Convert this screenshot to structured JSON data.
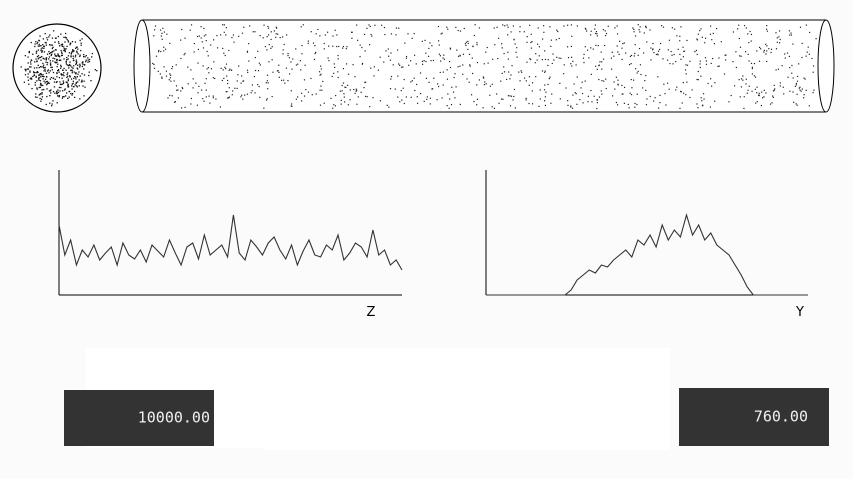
{
  "histograms": [
    {
      "axis_label": "Z",
      "ylim": [
        0,
        125
      ],
      "values": [
        70,
        40,
        55,
        30,
        45,
        38,
        50,
        35,
        42,
        48,
        30,
        52,
        40,
        36,
        45,
        33,
        50,
        44,
        38,
        55,
        42,
        30,
        48,
        52,
        36,
        60,
        40,
        45,
        50,
        38,
        80,
        42,
        35,
        55,
        48,
        40,
        52,
        58,
        45,
        36,
        50,
        30,
        44,
        55,
        40,
        38,
        50,
        45,
        60,
        35,
        42,
        52,
        48,
        38,
        65,
        40,
        45,
        30,
        35,
        25
      ]
    },
    {
      "axis_label": "Y",
      "ylim": [
        0,
        125
      ],
      "values": [
        0,
        0,
        0,
        0,
        0,
        0,
        0,
        0,
        0,
        0,
        0,
        0,
        0,
        0,
        5,
        15,
        20,
        25,
        22,
        30,
        28,
        35,
        40,
        45,
        38,
        55,
        50,
        60,
        48,
        70,
        55,
        65,
        58,
        80,
        60,
        70,
        55,
        62,
        50,
        45,
        40,
        30,
        20,
        8,
        0,
        0,
        0,
        0,
        0,
        0,
        0,
        0,
        0,
        0
      ]
    }
  ],
  "readouts": {
    "left": "10000.00",
    "right": "760.00"
  }
}
